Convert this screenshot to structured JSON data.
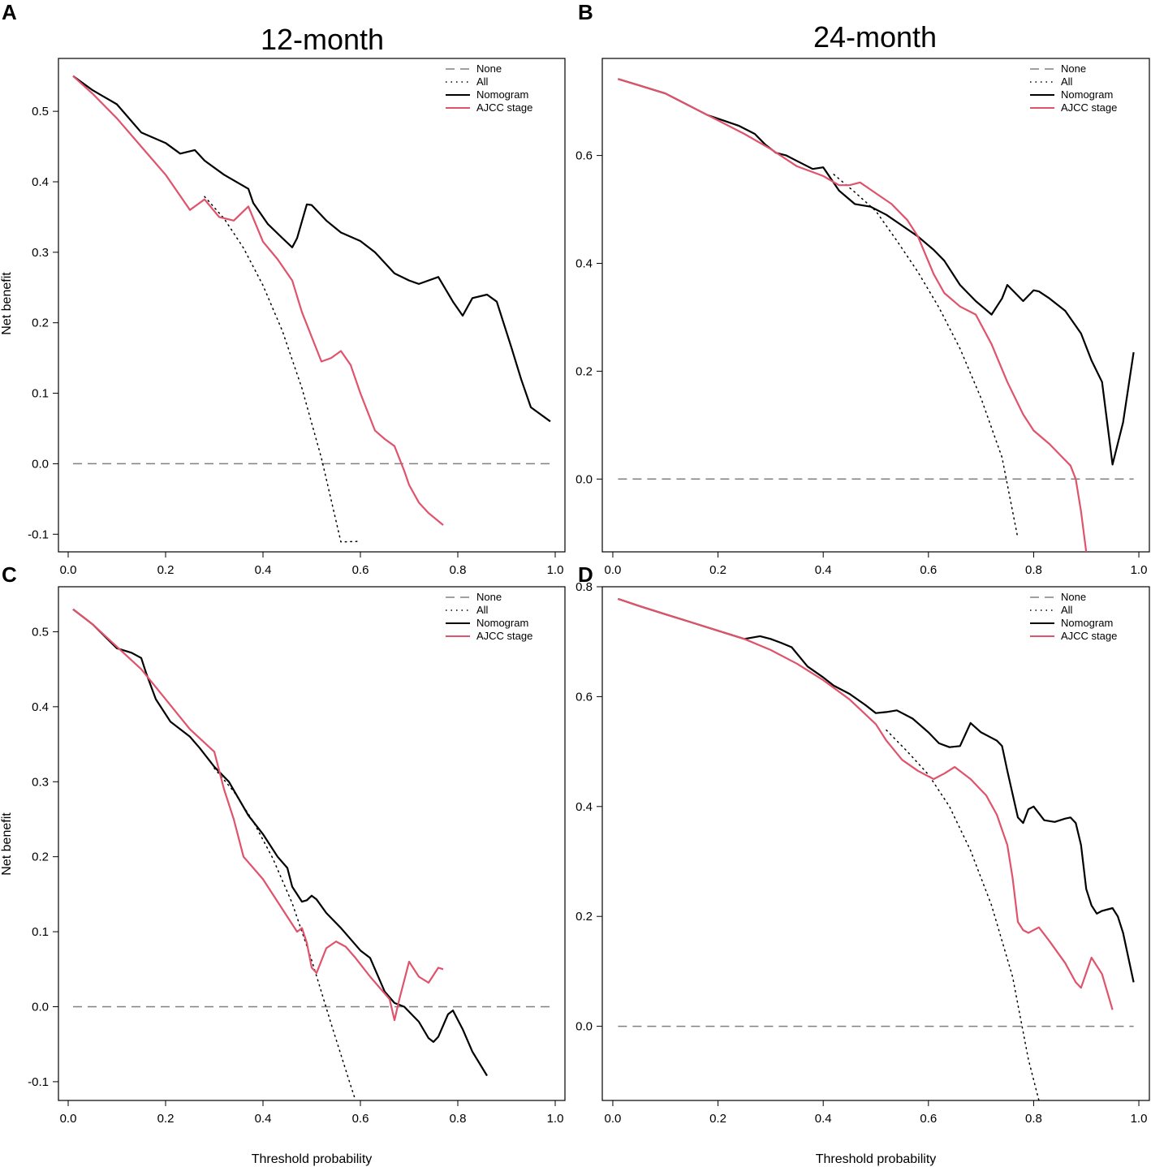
{
  "figure": {
    "column_titles": [
      "12-month",
      "24-month"
    ],
    "xlabel": "Threshold probability",
    "ylabel": "Net benefit"
  },
  "series_styles": {
    "None": {
      "color": "#808080",
      "dash": "dashed"
    },
    "All": {
      "color": "#000000",
      "dash": "dotted"
    },
    "Nomogram": {
      "color": "#000000",
      "dash": "solid"
    },
    "AJCC stage": {
      "color": "#df536b",
      "dash": "solid"
    }
  },
  "chart_data": [
    {
      "panel": "A",
      "type": "line",
      "title": "12-month",
      "xlabel": "",
      "ylabel": "Net benefit",
      "xlim": [
        -0.02,
        1.02
      ],
      "ylim": [
        -0.125,
        0.575
      ],
      "xticks": [
        "0.0",
        "0.2",
        "0.4",
        "0.6",
        "0.8",
        "1.0"
      ],
      "yticks": [
        "-0.1",
        "0.0",
        "0.1",
        "0.2",
        "0.3",
        "0.4",
        "0.5"
      ],
      "legend": [
        "None",
        "All",
        "Nomogram",
        "AJCC stage"
      ],
      "legend_position": "top-right",
      "series": [
        {
          "name": "None",
          "x": [
            0.01,
            0.99
          ],
          "y": [
            0,
            0
          ]
        },
        {
          "name": "All",
          "x": [
            0.28,
            0.32,
            0.36,
            0.4,
            0.44,
            0.48,
            0.52,
            0.56,
            0.6
          ],
          "y": [
            0.379,
            0.348,
            0.306,
            0.253,
            0.188,
            0.107,
            0.008,
            -0.111,
            -0.11
          ]
        },
        {
          "name": "Nomogram",
          "x": [
            0.01,
            0.05,
            0.1,
            0.15,
            0.2,
            0.23,
            0.26,
            0.28,
            0.32,
            0.37,
            0.38,
            0.41,
            0.44,
            0.46,
            0.47,
            0.49,
            0.5,
            0.53,
            0.56,
            0.6,
            0.63,
            0.67,
            0.7,
            0.72,
            0.76,
            0.79,
            0.81,
            0.83,
            0.86,
            0.88,
            0.91,
            0.93,
            0.95,
            0.99
          ],
          "y": [
            0.55,
            0.53,
            0.51,
            0.47,
            0.455,
            0.44,
            0.445,
            0.43,
            0.41,
            0.39,
            0.37,
            0.34,
            0.32,
            0.307,
            0.32,
            0.368,
            0.367,
            0.345,
            0.328,
            0.316,
            0.3,
            0.27,
            0.26,
            0.255,
            0.265,
            0.23,
            0.21,
            0.235,
            0.24,
            0.23,
            0.165,
            0.12,
            0.08,
            0.06
          ]
        },
        {
          "name": "AJCC stage",
          "x": [
            0.01,
            0.05,
            0.1,
            0.15,
            0.2,
            0.25,
            0.28,
            0.31,
            0.34,
            0.37,
            0.4,
            0.43,
            0.46,
            0.48,
            0.5,
            0.52,
            0.54,
            0.56,
            0.58,
            0.6,
            0.63,
            0.65,
            0.67,
            0.69,
            0.7,
            0.72,
            0.74,
            0.77
          ],
          "y": [
            0.55,
            0.525,
            0.49,
            0.45,
            0.41,
            0.36,
            0.375,
            0.35,
            0.345,
            0.365,
            0.315,
            0.29,
            0.26,
            0.215,
            0.18,
            0.145,
            0.15,
            0.16,
            0.14,
            0.1,
            0.047,
            0.035,
            0.025,
            -0.01,
            -0.03,
            -0.055,
            -0.07,
            -0.087
          ]
        }
      ]
    },
    {
      "panel": "B",
      "type": "line",
      "title": "24-month",
      "xlabel": "",
      "ylabel": "",
      "xlim": [
        -0.02,
        1.02
      ],
      "ylim": [
        -0.135,
        0.78
      ],
      "xticks": [
        "0.0",
        "0.2",
        "0.4",
        "0.6",
        "0.8",
        "1.0"
      ],
      "yticks": [
        "0.0",
        "0.2",
        "0.4",
        "0.6"
      ],
      "legend": [
        "None",
        "All",
        "Nomogram",
        "AJCC stage"
      ],
      "legend_position": "top-right",
      "series": [
        {
          "name": "None",
          "x": [
            0.01,
            0.99
          ],
          "y": [
            0,
            0
          ]
        },
        {
          "name": "All",
          "x": [
            0.42,
            0.46,
            0.5,
            0.54,
            0.58,
            0.62,
            0.66,
            0.7,
            0.74,
            0.77
          ],
          "y": [
            0.565,
            0.532,
            0.497,
            0.442,
            0.384,
            0.318,
            0.242,
            0.15,
            0.04,
            -0.11
          ]
        },
        {
          "name": "Nomogram",
          "x": [
            0.01,
            0.05,
            0.1,
            0.15,
            0.18,
            0.21,
            0.24,
            0.27,
            0.29,
            0.31,
            0.33,
            0.35,
            0.38,
            0.4,
            0.43,
            0.46,
            0.49,
            0.52,
            0.55,
            0.58,
            0.61,
            0.63,
            0.66,
            0.69,
            0.72,
            0.74,
            0.75,
            0.77,
            0.78,
            0.8,
            0.81,
            0.83,
            0.86,
            0.89,
            0.91,
            0.93,
            0.95,
            0.97,
            0.99
          ],
          "y": [
            0.742,
            0.73,
            0.715,
            0.69,
            0.675,
            0.665,
            0.655,
            0.64,
            0.62,
            0.605,
            0.6,
            0.59,
            0.575,
            0.578,
            0.535,
            0.51,
            0.505,
            0.49,
            0.47,
            0.45,
            0.425,
            0.405,
            0.36,
            0.33,
            0.305,
            0.335,
            0.36,
            0.34,
            0.33,
            0.35,
            0.348,
            0.335,
            0.312,
            0.27,
            0.22,
            0.18,
            0.027,
            0.105,
            0.235
          ]
        },
        {
          "name": "AJCC stage",
          "x": [
            0.01,
            0.05,
            0.1,
            0.15,
            0.2,
            0.25,
            0.3,
            0.35,
            0.4,
            0.43,
            0.45,
            0.47,
            0.5,
            0.53,
            0.56,
            0.58,
            0.61,
            0.63,
            0.66,
            0.69,
            0.72,
            0.75,
            0.78,
            0.8,
            0.83,
            0.85,
            0.87,
            0.88,
            0.89,
            0.9
          ],
          "y": [
            0.742,
            0.73,
            0.715,
            0.69,
            0.665,
            0.64,
            0.612,
            0.58,
            0.562,
            0.545,
            0.545,
            0.55,
            0.53,
            0.51,
            0.48,
            0.45,
            0.38,
            0.345,
            0.32,
            0.305,
            0.25,
            0.18,
            0.12,
            0.09,
            0.065,
            0.045,
            0.025,
            0.0,
            -0.06,
            -0.135
          ]
        }
      ]
    },
    {
      "panel": "C",
      "type": "line",
      "title": "",
      "xlabel": "Threshold probability",
      "ylabel": "Net benefit",
      "xlim": [
        -0.02,
        1.02
      ],
      "ylim": [
        -0.125,
        0.56
      ],
      "xticks": [
        "0.0",
        "0.2",
        "0.4",
        "0.6",
        "0.8",
        "1.0"
      ],
      "yticks": [
        "-0.1",
        "0.0",
        "0.1",
        "0.2",
        "0.3",
        "0.4",
        "0.5"
      ],
      "legend": [
        "None",
        "All",
        "Nomogram",
        "AJCC stage"
      ],
      "legend_position": "top-right",
      "series": [
        {
          "name": "None",
          "x": [
            0.01,
            0.99
          ],
          "y": [
            0,
            0
          ]
        },
        {
          "name": "All",
          "x": [
            0.3,
            0.34,
            0.38,
            0.42,
            0.46,
            0.5,
            0.54,
            0.58,
            0.59
          ],
          "y": [
            0.318,
            0.287,
            0.247,
            0.198,
            0.138,
            0.062,
            -0.023,
            -0.105,
            -0.125
          ]
        },
        {
          "name": "Nomogram",
          "x": [
            0.01,
            0.05,
            0.1,
            0.13,
            0.15,
            0.16,
            0.18,
            0.21,
            0.25,
            0.27,
            0.3,
            0.33,
            0.37,
            0.4,
            0.43,
            0.45,
            0.46,
            0.48,
            0.49,
            0.5,
            0.51,
            0.53,
            0.56,
            0.58,
            0.6,
            0.62,
            0.63,
            0.65,
            0.67,
            0.69,
            0.72,
            0.74,
            0.75,
            0.76,
            0.78,
            0.79,
            0.81,
            0.83,
            0.86
          ],
          "y": [
            0.53,
            0.51,
            0.478,
            0.472,
            0.465,
            0.445,
            0.41,
            0.38,
            0.36,
            0.345,
            0.32,
            0.3,
            0.255,
            0.23,
            0.2,
            0.185,
            0.16,
            0.14,
            0.142,
            0.148,
            0.143,
            0.125,
            0.105,
            0.09,
            0.075,
            0.065,
            0.05,
            0.02,
            0.005,
            0.0,
            -0.02,
            -0.042,
            -0.047,
            -0.04,
            -0.01,
            -0.005,
            -0.03,
            -0.06,
            -0.092
          ]
        },
        {
          "name": "AJCC stage",
          "x": [
            0.01,
            0.05,
            0.1,
            0.15,
            0.2,
            0.25,
            0.3,
            0.32,
            0.34,
            0.36,
            0.38,
            0.4,
            0.42,
            0.45,
            0.47,
            0.48,
            0.49,
            0.5,
            0.51,
            0.53,
            0.55,
            0.57,
            0.59,
            0.62,
            0.64,
            0.66,
            0.67,
            0.68,
            0.7,
            0.71,
            0.72,
            0.74,
            0.76,
            0.77
          ],
          "y": [
            0.53,
            0.51,
            0.48,
            0.45,
            0.41,
            0.37,
            0.34,
            0.29,
            0.25,
            0.2,
            0.185,
            0.17,
            0.15,
            0.12,
            0.1,
            0.105,
            0.085,
            0.052,
            0.045,
            0.078,
            0.087,
            0.08,
            0.065,
            0.04,
            0.025,
            0.01,
            -0.018,
            0.01,
            0.06,
            0.05,
            0.04,
            0.032,
            0.052,
            0.05
          ]
        }
      ]
    },
    {
      "panel": "D",
      "type": "line",
      "title": "",
      "xlabel": "Threshold probability",
      "ylabel": "",
      "xlim": [
        -0.02,
        1.02
      ],
      "ylim": [
        -0.135,
        0.8
      ],
      "xticks": [
        "0.0",
        "0.2",
        "0.4",
        "0.6",
        "0.8",
        "1.0"
      ],
      "yticks": [
        "0.0",
        "0.2",
        "0.4",
        "0.6",
        "0.8"
      ],
      "legend": [
        "None",
        "All",
        "Nomogram",
        "AJCC stage"
      ],
      "legend_position": "top-right",
      "series": [
        {
          "name": "None",
          "x": [
            0.01,
            0.99
          ],
          "y": [
            0,
            0
          ]
        },
        {
          "name": "All",
          "x": [
            0.52,
            0.56,
            0.6,
            0.64,
            0.68,
            0.72,
            0.76,
            0.79,
            0.81
          ],
          "y": [
            0.539,
            0.5,
            0.458,
            0.4,
            0.32,
            0.22,
            0.09,
            -0.06,
            -0.135
          ]
        },
        {
          "name": "Nomogram",
          "x": [
            0.01,
            0.05,
            0.1,
            0.15,
            0.2,
            0.25,
            0.28,
            0.3,
            0.32,
            0.34,
            0.37,
            0.4,
            0.42,
            0.45,
            0.48,
            0.5,
            0.52,
            0.54,
            0.57,
            0.6,
            0.62,
            0.64,
            0.66,
            0.68,
            0.7,
            0.72,
            0.73,
            0.74,
            0.75,
            0.77,
            0.78,
            0.79,
            0.8,
            0.82,
            0.84,
            0.86,
            0.87,
            0.88,
            0.89,
            0.9,
            0.91,
            0.92,
            0.93,
            0.95,
            0.96,
            0.97,
            0.99
          ],
          "y": [
            0.778,
            0.765,
            0.75,
            0.735,
            0.72,
            0.705,
            0.71,
            0.705,
            0.698,
            0.69,
            0.655,
            0.635,
            0.62,
            0.605,
            0.585,
            0.57,
            0.572,
            0.575,
            0.56,
            0.535,
            0.515,
            0.508,
            0.51,
            0.552,
            0.535,
            0.525,
            0.52,
            0.51,
            0.465,
            0.38,
            0.37,
            0.395,
            0.4,
            0.375,
            0.372,
            0.378,
            0.38,
            0.37,
            0.33,
            0.25,
            0.22,
            0.205,
            0.21,
            0.215,
            0.2,
            0.17,
            0.08
          ]
        },
        {
          "name": "AJCC stage",
          "x": [
            0.01,
            0.05,
            0.1,
            0.15,
            0.2,
            0.25,
            0.3,
            0.35,
            0.4,
            0.45,
            0.5,
            0.52,
            0.55,
            0.58,
            0.61,
            0.63,
            0.65,
            0.68,
            0.71,
            0.73,
            0.75,
            0.76,
            0.77,
            0.78,
            0.79,
            0.81,
            0.83,
            0.86,
            0.88,
            0.89,
            0.91,
            0.93,
            0.95
          ],
          "y": [
            0.778,
            0.765,
            0.75,
            0.735,
            0.72,
            0.705,
            0.685,
            0.66,
            0.63,
            0.595,
            0.55,
            0.52,
            0.485,
            0.465,
            0.45,
            0.46,
            0.472,
            0.45,
            0.42,
            0.385,
            0.33,
            0.27,
            0.19,
            0.175,
            0.17,
            0.18,
            0.155,
            0.115,
            0.08,
            0.07,
            0.125,
            0.095,
            0.03
          ]
        }
      ]
    }
  ]
}
